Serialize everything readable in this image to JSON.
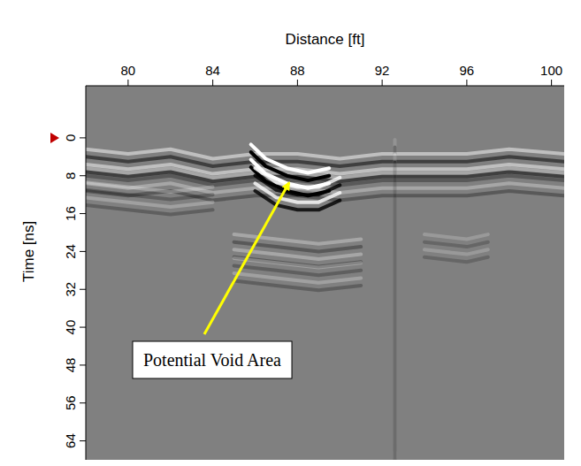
{
  "chart_data": {
    "type": "radargram",
    "x_label": "Distance [ft]",
    "y_label": "Time [ns]",
    "xlim": [
      78,
      100.6
    ],
    "xticks": [
      80,
      84,
      88,
      92,
      96,
      100
    ],
    "ylim": [
      -11,
      68
    ],
    "yticks": [
      0,
      8,
      16,
      24,
      32,
      40,
      48,
      56,
      64
    ],
    "time_zero": 0,
    "annotation": {
      "text": "Potential Void Area",
      "x": 87.6,
      "t": 9.5
    },
    "reflectors": [
      {
        "x": [
          78,
          80,
          82,
          84,
          86,
          88,
          90,
          92,
          94,
          96,
          98,
          100.6
        ],
        "t": [
          4,
          5,
          4,
          6,
          5,
          5,
          6,
          5,
          5,
          5,
          4,
          5
        ],
        "amplitude": 0.5
      },
      {
        "x": [
          78,
          80,
          82,
          84,
          86,
          88,
          90,
          92,
          94,
          96,
          98,
          100.6
        ],
        "t": [
          8,
          9,
          8,
          10,
          9,
          9,
          10,
          9,
          9,
          9,
          8,
          9
        ],
        "amplitude": 0.3
      },
      {
        "x": [
          85.8,
          86.5,
          87.5,
          88.5,
          89.5
        ],
        "t": [
          3,
          6,
          8,
          9,
          8
        ],
        "amplitude": 1
      },
      {
        "x": [
          86,
          87,
          88,
          89,
          90
        ],
        "t": [
          8,
          11,
          12,
          12,
          10
        ],
        "amplitude": 0.8
      },
      {
        "x": [
          78,
          80,
          82,
          84
        ],
        "t": [
          11,
          12,
          13,
          12
        ],
        "amplitude": 0.25
      },
      {
        "x": [
          85,
          87,
          89,
          91
        ],
        "t": [
          22,
          23,
          24,
          23
        ],
        "amplitude": 0.3
      },
      {
        "x": [
          85,
          87,
          89,
          91
        ],
        "t": [
          27,
          28,
          29,
          28
        ],
        "amplitude": 0.25
      },
      {
        "x": [
          94,
          96,
          97
        ],
        "t": [
          22,
          23,
          22
        ],
        "amplitude": 0.2
      },
      {
        "x": [
          92.6,
          92.6
        ],
        "t": [
          2,
          66
        ],
        "amplitude": 0.15
      }
    ]
  }
}
